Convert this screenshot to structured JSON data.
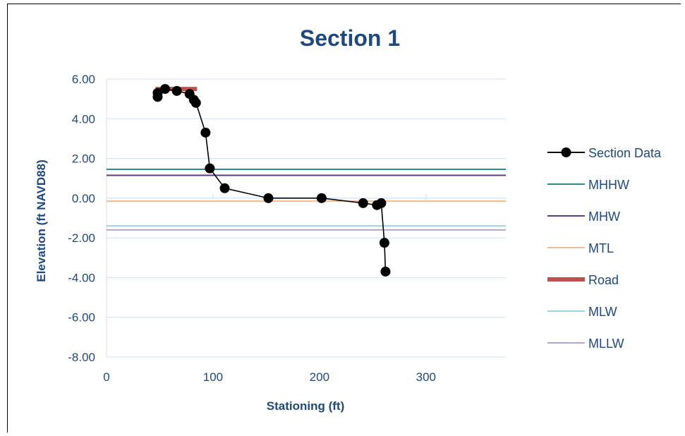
{
  "chart_data": {
    "type": "scatter",
    "title": "Section 1",
    "xlabel": "Stationing (ft)",
    "ylabel": "Elevation (ft NAVD88)",
    "xlim": [
      0,
      375
    ],
    "ylim": [
      -8,
      6
    ],
    "x_ticks": [
      0,
      100,
      200,
      300
    ],
    "x_tick_labels": [
      "0",
      "100",
      "200",
      "300"
    ],
    "y_ticks": [
      6,
      4,
      2,
      0,
      -2,
      -4,
      -6,
      -8
    ],
    "y_tick_labels": [
      "6.00",
      "4.00",
      "2.00",
      "0.00",
      "-2.00",
      "-4.00",
      "-6.00",
      "-8.00"
    ],
    "grid": "horizontal major gridlines",
    "legend_position": "right",
    "series": [
      {
        "name": "Section Data",
        "color": "#000000",
        "style": "line-with-markers",
        "x": [
          48,
          48,
          55,
          66,
          78,
          82,
          84,
          93,
          97,
          111,
          152,
          202,
          241,
          254,
          258,
          261,
          262
        ],
        "y": [
          5.1,
          5.3,
          5.5,
          5.4,
          5.25,
          4.95,
          4.8,
          3.3,
          1.5,
          0.5,
          0.0,
          0.0,
          -0.25,
          -0.35,
          -0.25,
          -2.25,
          -3.7
        ]
      },
      {
        "name": "MHHW",
        "color": "#2e8c91",
        "style": "horizontal-line",
        "y": 1.45
      },
      {
        "name": "MHW",
        "color": "#5b3f7a",
        "style": "horizontal-line",
        "y": 1.15
      },
      {
        "name": "MTL",
        "color": "#f7b98a",
        "style": "horizontal-line",
        "y": -0.15
      },
      {
        "name": "Road",
        "color": "#c0504d",
        "style": "thick-line",
        "x": [
          46,
          85
        ],
        "y": [
          5.5,
          5.5
        ]
      },
      {
        "name": "MLW",
        "color": "#9fd0de",
        "style": "horizontal-line",
        "y": -1.4
      },
      {
        "name": "MLLW",
        "color": "#b5a4cc",
        "style": "horizontal-line",
        "y": -1.6
      }
    ]
  }
}
